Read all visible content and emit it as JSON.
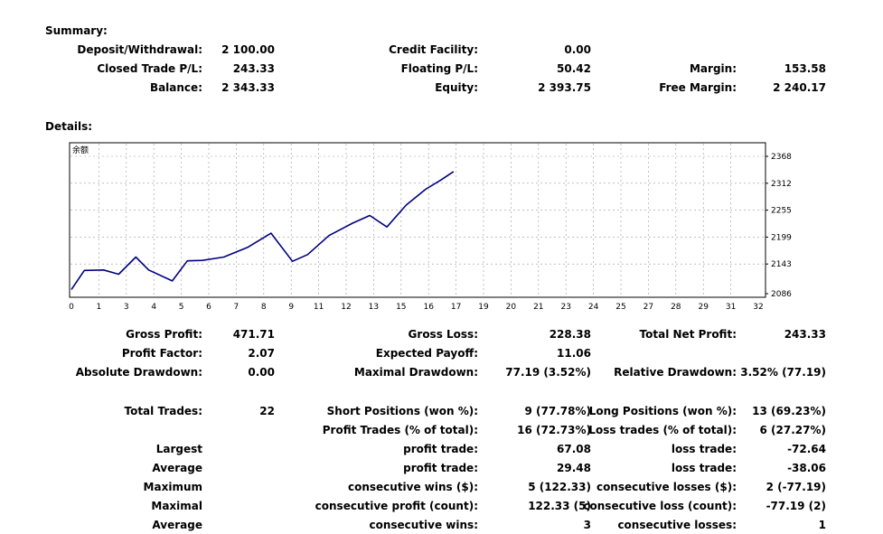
{
  "summary": {
    "heading": "Summary:",
    "row1": {
      "l1": "Deposit/Withdrawal:",
      "v1": "2 100.00",
      "l2": "Credit Facility:",
      "v2": "0.00"
    },
    "row2": {
      "l1": "Closed Trade P/L:",
      "v1": "243.33",
      "l2": "Floating P/L:",
      "v2": "50.42",
      "l3": "Margin:",
      "v3": "153.58"
    },
    "row3": {
      "l1": "Balance:",
      "v1": "2 343.33",
      "l2": "Equity:",
      "v2": "2 393.75",
      "l3": "Free Margin:",
      "v3": "2 240.17"
    }
  },
  "details": {
    "heading": "Details:"
  },
  "chart_data": {
    "type": "line",
    "title": "余额",
    "xlabel": "",
    "ylabel": "",
    "x_ticks": [
      "0",
      "1",
      "3",
      "4",
      "5",
      "6",
      "7",
      "8",
      "9",
      "11",
      "12",
      "13",
      "15",
      "16",
      "17",
      "19",
      "20",
      "21",
      "23",
      "24",
      "25",
      "27",
      "28",
      "29",
      "31",
      "32"
    ],
    "y_ticks": [
      "2368",
      "2312",
      "2255",
      "2199",
      "2143",
      "2086"
    ],
    "ylim": [
      2086,
      2368
    ],
    "xlim": [
      0,
      32
    ],
    "grid": true,
    "series": [
      {
        "color": "#000080",
        "x": [
          0,
          0.6,
          1.5,
          2.2,
          3,
          3.6,
          4.7,
          5.4,
          6.1,
          7.1,
          8.2,
          9.3,
          10.3,
          11,
          12,
          13.1,
          13.9,
          14.7,
          15.6,
          16.5,
          17.2,
          17.8
        ],
        "y": [
          2089,
          2129,
          2130,
          2121,
          2157,
          2130,
          2107,
          2149,
          2150,
          2157,
          2177,
          2207,
          2148,
          2162,
          2202,
          2228,
          2244,
          2220,
          2266,
          2299,
          2318,
          2336
        ]
      }
    ]
  },
  "stats": {
    "gross_profit_label": "Gross Profit:",
    "gross_profit": "471.71",
    "gross_loss_label": "Gross Loss:",
    "gross_loss": "228.38",
    "total_net_profit_label": "Total Net Profit:",
    "total_net_profit": "243.33",
    "profit_factor_label": "Profit Factor:",
    "profit_factor": "2.07",
    "expected_payoff_label": "Expected Payoff:",
    "expected_payoff": "11.06",
    "absolute_drawdown_label": "Absolute Drawdown:",
    "absolute_drawdown": "0.00",
    "maximal_drawdown_label": "Maximal Drawdown:",
    "maximal_drawdown": "77.19 (3.52%)",
    "relative_drawdown_label": "Relative Drawdown:",
    "relative_drawdown": "3.52% (77.19)"
  },
  "trades": {
    "total_trades_label": "Total Trades:",
    "total_trades": "22",
    "short_label": "Short Positions (won %):",
    "short": "9 (77.78%)",
    "long_label": "Long Positions (won %):",
    "long": "13 (69.23%)",
    "profit_trades_label": "Profit Trades (% of total):",
    "profit_trades": "16 (72.73%)",
    "loss_trades_label": "Loss trades (% of total):",
    "loss_trades": "6 (27.27%)",
    "largest_label": "Largest",
    "largest_profit_label": "profit trade:",
    "largest_profit": "67.08",
    "largest_loss_label": "loss trade:",
    "largest_loss": "-72.64",
    "average_label": "Average",
    "average_profit_label": "profit trade:",
    "average_profit": "29.48",
    "average_loss_label": "loss trade:",
    "average_loss": "-38.06",
    "maximum_label": "Maximum",
    "max_cons_wins_label": "consecutive wins ($):",
    "max_cons_wins": "5 (122.33)",
    "max_cons_losses_label": "consecutive losses ($):",
    "max_cons_losses": "2 (-77.19)",
    "maximal_label": "Maximal",
    "maximal_cons_profit_label": "consecutive profit (count):",
    "maximal_cons_profit": "122.33 (5)",
    "maximal_cons_loss_label": "consecutive loss (count):",
    "maximal_cons_loss": "-77.19 (2)",
    "average2_label": "Average",
    "avg_cons_wins_label": "consecutive wins:",
    "avg_cons_wins": "3",
    "avg_cons_losses_label": "consecutive losses:",
    "avg_cons_losses": "1"
  }
}
